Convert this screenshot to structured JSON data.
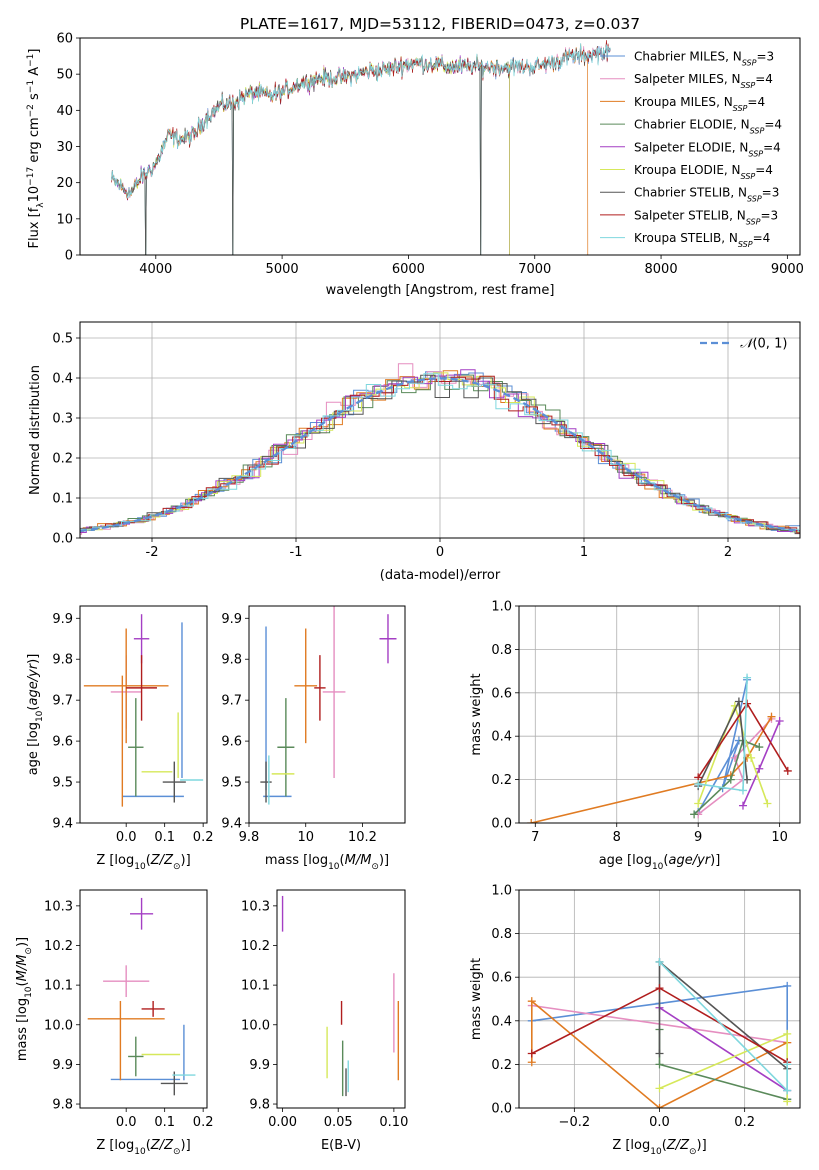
{
  "figure_title": "PLATE=1617, MJD=53112, FIBERID=0473, z=0.037",
  "model_colors": {
    "Chabrier MILES": "#5b8fd6",
    "Salpeter MILES": "#e58ec0",
    "Kroupa MILES": "#e07b22",
    "Chabrier ELODIE": "#5a8a5a",
    "Salpeter ELODIE": "#a43fc4",
    "Kroupa ELODIE": "#d6e85a",
    "Chabrier STELIB": "#555555",
    "Salpeter STELIB": "#b01e1e",
    "Kroupa STELIB": "#7fd7de"
  },
  "chart_data": [
    {
      "type": "line",
      "xlabel": "wavelength [Angstrom, rest frame]",
      "ylabel": "Flux [f$_\\lambda$10$^{-17}$ erg cm$^{-2}$ s$^{-1}$ A$^{-1}$]",
      "xlim": [
        3400,
        9100
      ],
      "ylim": [
        0,
        60
      ],
      "xticks": [
        4000,
        5000,
        6000,
        7000,
        8000,
        9000
      ],
      "yticks": [
        0,
        10,
        20,
        30,
        40,
        50,
        60
      ],
      "legend_position": "right",
      "legend": [
        {
          "model": "Chabrier MILES",
          "nssp": "3"
        },
        {
          "model": "Salpeter MILES",
          "nssp": "4"
        },
        {
          "model": "Kroupa MILES",
          "nssp": "4"
        },
        {
          "model": "Chabrier ELODIE",
          "nssp": "4"
        },
        {
          "model": "Salpeter ELODIE",
          "nssp": "4"
        },
        {
          "model": "Kroupa ELODIE",
          "nssp": "4"
        },
        {
          "model": "Chabrier STELIB",
          "nssp": "3"
        },
        {
          "model": "Salpeter STELIB",
          "nssp": "3"
        },
        {
          "model": "Kroupa STELIB",
          "nssp": "4"
        }
      ],
      "continuum": {
        "wavelength": [
          3650,
          3800,
          3900,
          4000,
          4100,
          4200,
          4300,
          4400,
          4500,
          4600,
          4700,
          4800,
          4900,
          5000,
          5100,
          5200,
          5300,
          5400,
          5500,
          5600,
          5700,
          5800,
          5900,
          6000,
          6100,
          6200,
          6300,
          6400,
          6500,
          6600,
          6700,
          6800,
          6900,
          7000,
          7100,
          7200,
          7300,
          7400,
          7500,
          7600
        ],
        "flux": [
          21,
          17,
          22,
          25,
          33,
          32,
          33,
          38,
          41,
          42,
          44,
          45,
          44,
          45,
          47,
          48,
          49,
          49,
          49,
          50,
          51,
          51,
          52,
          53,
          53,
          53,
          52,
          52,
          52,
          52,
          52,
          52,
          52,
          52,
          53,
          54,
          55,
          55,
          56,
          56
        ]
      },
      "model_cutoffs": [
        {
          "model": "Kroupa MILES",
          "max_wavelength": 7420
        },
        {
          "model": "Kroupa ELODIE",
          "max_wavelength": 6800
        },
        {
          "model": "Salpeter ELODIE",
          "max_wavelength": 6800
        },
        {
          "model": "Chabrier ELODIE",
          "max_wavelength": 6800
        }
      ],
      "drops": [
        3920,
        4610,
        6570
      ]
    },
    {
      "type": "area",
      "xlabel": "(data-model)/error",
      "ylabel": "Normed distribution",
      "xlim": [
        -2.5,
        2.5
      ],
      "ylim": [
        0,
        0.54
      ],
      "xticks": [
        -2,
        -1,
        0,
        1,
        2
      ],
      "yticks": [
        0.0,
        0.1,
        0.2,
        0.3,
        0.4,
        0.5
      ],
      "grid": true,
      "legend_position": "top-right",
      "reference_curve": "normal",
      "reference_label": "N(0,1)",
      "bin_width": 0.1
    },
    {
      "type": "scatter",
      "xlabel": "Z [log10(Z/Z⊙)]",
      "ylabel": "age  [log10(age/yr)]",
      "xlim": [
        -0.12,
        0.21
      ],
      "ylim": [
        9.4,
        9.93
      ],
      "xticks": [
        0.0,
        0.1,
        0.2
      ],
      "xtick_labels": [
        "0.0",
        "0.1",
        "0.2"
      ],
      "yticks": [
        9.4,
        9.5,
        9.6,
        9.7,
        9.8,
        9.9
      ],
      "points": [
        {
          "model": "Chabrier MILES",
          "x": 0.07,
          "y": 9.465,
          "xerr": 0.08,
          "yerr": 0.0
        },
        {
          "model": "Chabrier MILES",
          "x": 0.145,
          "y": 9.7,
          "xerr": 0.0,
          "yerr": 0.19
        },
        {
          "model": "Salpeter MILES",
          "x": 0.0,
          "y": 9.72,
          "xerr": 0.04,
          "yerr": 0.09
        },
        {
          "model": "Kroupa MILES",
          "x": 0.0,
          "y": 9.735,
          "xerr": 0.11,
          "yerr": 0.14
        },
        {
          "model": "Kroupa MILES",
          "x": -0.01,
          "y": 9.6,
          "xerr": 0.0,
          "yerr": 0.16
        },
        {
          "model": "Chabrier ELODIE",
          "x": 0.025,
          "y": 9.585,
          "xerr": 0.02,
          "yerr": 0.12
        },
        {
          "model": "Salpeter ELODIE",
          "x": 0.04,
          "y": 9.85,
          "xerr": 0.02,
          "yerr": 0.06
        },
        {
          "model": "Kroupa ELODIE",
          "x": 0.08,
          "y": 9.525,
          "xerr": 0.04,
          "yerr": 0.0
        },
        {
          "model": "Kroupa ELODIE",
          "x": 0.135,
          "y": 9.59,
          "xerr": 0.0,
          "yerr": 0.08
        },
        {
          "model": "Chabrier STELIB",
          "x": 0.125,
          "y": 9.5,
          "xerr": 0.03,
          "yerr": 0.05
        },
        {
          "model": "Salpeter STELIB",
          "x": 0.04,
          "y": 9.73,
          "xerr": 0.04,
          "yerr": 0.08
        },
        {
          "model": "Kroupa STELIB",
          "x": 0.17,
          "y": 9.505,
          "xerr": 0.03,
          "yerr": 0.0
        }
      ]
    },
    {
      "type": "scatter",
      "xlabel": "mass [log10(M/M⊙)]",
      "xlim": [
        9.8,
        10.35
      ],
      "ylim": [
        9.4,
        9.93
      ],
      "xticks": [
        9.8,
        10.0,
        10.2
      ],
      "yticks": [
        9.4,
        9.5,
        9.6,
        9.7,
        9.8,
        9.9
      ],
      "points": [
        {
          "model": "Chabrier MILES",
          "x": 9.86,
          "y": 9.68,
          "xerr": 0.0,
          "yerr": 0.2
        },
        {
          "model": "Chabrier MILES",
          "x": 9.9,
          "y": 9.465,
          "xerr": 0.05,
          "yerr": 0.0
        },
        {
          "model": "Salpeter MILES",
          "x": 10.1,
          "y": 9.72,
          "xerr": 0.04,
          "yerr": 0.21
        },
        {
          "model": "Kroupa MILES",
          "x": 10.0,
          "y": 9.735,
          "xerr": 0.04,
          "yerr": 0.14
        },
        {
          "model": "Chabrier ELODIE",
          "x": 9.93,
          "y": 9.585,
          "xerr": 0.03,
          "yerr": 0.12
        },
        {
          "model": "Salpeter ELODIE",
          "x": 10.29,
          "y": 9.85,
          "xerr": 0.03,
          "yerr": 0.06
        },
        {
          "model": "Kroupa ELODIE",
          "x": 9.92,
          "y": 9.52,
          "xerr": 0.04,
          "yerr": 0.0
        },
        {
          "model": "Chabrier STELIB",
          "x": 9.86,
          "y": 9.5,
          "xerr": 0.02,
          "yerr": 0.05
        },
        {
          "model": "Salpeter STELIB",
          "x": 10.05,
          "y": 9.73,
          "xerr": 0.02,
          "yerr": 0.08
        },
        {
          "model": "Kroupa STELIB",
          "x": 9.87,
          "y": 9.505,
          "xerr": 0.0,
          "yerr": 0.06
        }
      ]
    },
    {
      "type": "line",
      "xlabel": "age  [log10(age/yr)]",
      "ylabel": "mass weight",
      "xlim": [
        6.8,
        10.25
      ],
      "ylim": [
        0,
        1.0
      ],
      "xticks": [
        7,
        8,
        9,
        10
      ],
      "yticks": [
        0.0,
        0.2,
        0.4,
        0.6,
        0.8,
        1.0
      ],
      "grid": true,
      "series": [
        {
          "model": "Chabrier MILES",
          "x": [
            9.0,
            9.5,
            9.3,
            9.6
          ],
          "y": [
            0.05,
            0.38,
            0.16,
            0.66
          ]
        },
        {
          "model": "Salpeter MILES",
          "x": [
            9.0,
            9.55,
            9.45,
            9.9
          ],
          "y": [
            0.04,
            0.2,
            0.3,
            0.48
          ]
        },
        {
          "model": "Kroupa MILES",
          "x": [
            6.95,
            9.4,
            9.6,
            9.9
          ],
          "y": [
            0.0,
            0.22,
            0.3,
            0.49
          ]
        },
        {
          "model": "Chabrier ELODIE",
          "x": [
            8.95,
            9.4,
            9.55,
            9.75
          ],
          "y": [
            0.04,
            0.2,
            0.38,
            0.35
          ]
        },
        {
          "model": "Salpeter ELODIE",
          "x": [
            9.55,
            9.75,
            10.0
          ],
          "y": [
            0.08,
            0.25,
            0.47
          ]
        },
        {
          "model": "Kroupa ELODIE",
          "x": [
            9.0,
            9.45,
            9.65,
            9.85
          ],
          "y": [
            0.09,
            0.54,
            0.3,
            0.09
          ]
        },
        {
          "model": "Chabrier STELIB",
          "x": [
            9.0,
            9.5,
            9.6
          ],
          "y": [
            0.17,
            0.56,
            0.2
          ]
        },
        {
          "model": "Salpeter STELIB",
          "x": [
            9.0,
            9.6,
            10.1
          ],
          "y": [
            0.21,
            0.55,
            0.24
          ]
        },
        {
          "model": "Kroupa STELIB",
          "x": [
            9.0,
            9.55,
            9.6
          ],
          "y": [
            0.18,
            0.15,
            0.67
          ]
        }
      ]
    },
    {
      "type": "scatter",
      "xlabel": "Z [log10(Z/Z⊙)]",
      "ylabel": "mass [log10(M/M⊙)]",
      "xlim": [
        -0.12,
        0.21
      ],
      "ylim": [
        9.79,
        10.34
      ],
      "xticks": [
        0.0,
        0.1,
        0.2
      ],
      "xtick_labels": [
        "0.0",
        "0.1",
        "0.2"
      ],
      "yticks": [
        9.8,
        9.9,
        10.0,
        10.1,
        10.2,
        10.3
      ],
      "points": [
        {
          "model": "Chabrier MILES",
          "x": 0.05,
          "y": 9.862,
          "xerr": 0.09,
          "yerr": 0.0
        },
        {
          "model": "Chabrier MILES",
          "x": 0.15,
          "y": 9.93,
          "xerr": 0.0,
          "yerr": 0.07
        },
        {
          "model": "Salpeter MILES",
          "x": 0.0,
          "y": 10.11,
          "xerr": 0.06,
          "yerr": 0.04
        },
        {
          "model": "Kroupa MILES",
          "x": 0.0,
          "y": 10.015,
          "xerr": 0.1,
          "yerr": 0.0
        },
        {
          "model": "Kroupa MILES",
          "x": -0.015,
          "y": 9.96,
          "xerr": 0.0,
          "yerr": 0.1
        },
        {
          "model": "Chabrier ELODIE",
          "x": 0.025,
          "y": 9.92,
          "xerr": 0.02,
          "yerr": 0.05
        },
        {
          "model": "Salpeter ELODIE",
          "x": 0.04,
          "y": 10.28,
          "xerr": 0.03,
          "yerr": 0.04
        },
        {
          "model": "Kroupa ELODIE",
          "x": 0.09,
          "y": 9.925,
          "xerr": 0.05,
          "yerr": 0.0
        },
        {
          "model": "Chabrier STELIB",
          "x": 0.125,
          "y": 9.852,
          "xerr": 0.035,
          "yerr": 0.03
        },
        {
          "model": "Salpeter STELIB",
          "x": 0.07,
          "y": 10.04,
          "xerr": 0.03,
          "yerr": 0.02
        },
        {
          "model": "Kroupa STELIB",
          "x": 0.15,
          "y": 9.873,
          "xerr": 0.03,
          "yerr": 0.0
        }
      ]
    },
    {
      "type": "scatter",
      "xlabel": "E(B-V)",
      "xlim": [
        -0.005,
        0.11
      ],
      "ylim": [
        9.79,
        10.34
      ],
      "xticks": [
        0.0,
        0.05,
        0.1
      ],
      "xtick_labels": [
        "0.00",
        "0.05",
        "0.10"
      ],
      "yticks": [
        9.8,
        9.9,
        10.0,
        10.1,
        10.2,
        10.3
      ],
      "points": [
        {
          "model": "Salpeter ELODIE",
          "x": 0.0,
          "y": 10.28,
          "xerr": 0.0,
          "yerr": 0.045
        },
        {
          "model": "Kroupa ELODIE",
          "x": 0.04,
          "y": 9.93,
          "xerr": 0.0,
          "yerr": 0.065
        },
        {
          "model": "Salpeter STELIB",
          "x": 0.053,
          "y": 10.03,
          "xerr": 0.0,
          "yerr": 0.03
        },
        {
          "model": "Chabrier ELODIE",
          "x": 0.054,
          "y": 9.89,
          "xerr": 0.0,
          "yerr": 0.07
        },
        {
          "model": "Chabrier STELIB",
          "x": 0.057,
          "y": 9.855,
          "xerr": 0.0,
          "yerr": 0.035
        },
        {
          "model": "Kroupa STELIB",
          "x": 0.059,
          "y": 9.87,
          "xerr": 0.0,
          "yerr": 0.04
        },
        {
          "model": "Salpeter MILES",
          "x": 0.1,
          "y": 10.03,
          "xerr": 0.0,
          "yerr": 0.1
        },
        {
          "model": "Kroupa MILES",
          "x": 0.104,
          "y": 9.96,
          "xerr": 0.0,
          "yerr": 0.1
        }
      ]
    },
    {
      "type": "line",
      "xlabel": "Z [log10(Z/Z⊙)]",
      "ylabel": "mass weight",
      "xlim": [
        -0.33,
        0.33
      ],
      "ylim": [
        0,
        1.0
      ],
      "xticks": [
        -0.2,
        0.0,
        0.2
      ],
      "xtick_labels": [
        "−0.2",
        "0.0",
        "0.2"
      ],
      "yticks": [
        0.0,
        0.2,
        0.4,
        0.6,
        0.8,
        1.0
      ],
      "grid": true,
      "series": [
        {
          "model": "Chabrier MILES",
          "x": [
            -0.3,
            0.0,
            0.3,
            0.3
          ],
          "y": [
            0.4,
            0.48,
            0.56,
            0.04
          ]
        },
        {
          "model": "Salpeter MILES",
          "x": [
            -0.3,
            0.3
          ],
          "y": [
            0.47,
            0.3
          ]
        },
        {
          "model": "Kroupa MILES",
          "x": [
            -0.3,
            -0.3,
            0.0,
            0.3
          ],
          "y": [
            0.21,
            0.49,
            0.0,
            0.3
          ]
        },
        {
          "model": "Chabrier ELODIE",
          "x": [
            0.0,
            0.0,
            0.3
          ],
          "y": [
            0.36,
            0.2,
            0.04
          ]
        },
        {
          "model": "Salpeter ELODIE",
          "x": [
            0.0,
            0.3
          ],
          "y": [
            0.46,
            0.08
          ]
        },
        {
          "model": "Kroupa ELODIE",
          "x": [
            0.0,
            0.3,
            0.3
          ],
          "y": [
            0.09,
            0.34,
            0.03
          ]
        },
        {
          "model": "Chabrier STELIB",
          "x": [
            0.0,
            0.0,
            0.3
          ],
          "y": [
            0.25,
            0.67,
            0.18
          ]
        },
        {
          "model": "Salpeter STELIB",
          "x": [
            -0.3,
            0.0,
            0.3
          ],
          "y": [
            0.25,
            0.55,
            0.21
          ]
        },
        {
          "model": "Kroupa STELIB",
          "x": [
            0.0,
            0.3,
            0.3
          ],
          "y": [
            0.67,
            0.08,
            0.2
          ]
        }
      ]
    }
  ]
}
